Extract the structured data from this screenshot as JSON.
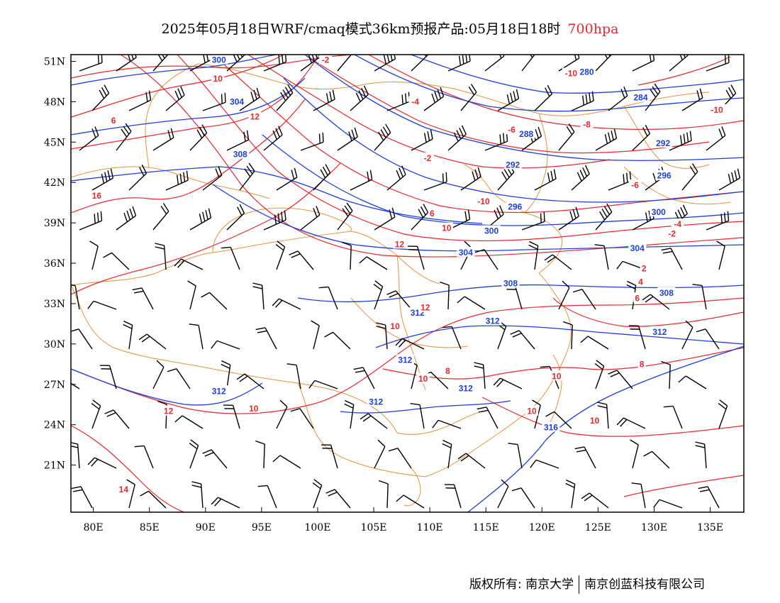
{
  "title": {
    "text": "2025年05月18日WRF/cmaq模式36km预报产品:05月18日18时",
    "level": "700hpa",
    "level_color": "#e8282c"
  },
  "footer": {
    "left": "版权所有: 南京大学",
    "right": "南京创蓝科技有限公司"
  },
  "map": {
    "lon_range": [
      78,
      138
    ],
    "lat_range": [
      17.5,
      51.5
    ],
    "x_ticks": [
      "80E",
      "85E",
      "90E",
      "95E",
      "100E",
      "105E",
      "110E",
      "115E",
      "120E",
      "125E",
      "130E",
      "135E"
    ],
    "x_tick_values": [
      80,
      85,
      90,
      95,
      100,
      105,
      110,
      115,
      120,
      125,
      130,
      135
    ],
    "y_ticks": [
      "51N",
      "48N",
      "45N",
      "42N",
      "39N",
      "36N",
      "33N",
      "30N",
      "27N",
      "24N",
      "21N"
    ],
    "y_tick_values": [
      51,
      48,
      45,
      42,
      39,
      36,
      33,
      30,
      27,
      24,
      21
    ],
    "colors": {
      "geopotential_height": "#1e3fdc",
      "temperature": "#e8282c",
      "boundaries": "#e8923a",
      "wind_barbs": "#000000"
    }
  },
  "height_labels": [
    {
      "text": "300",
      "lon": 91.2,
      "lat": 51.1
    },
    {
      "text": "304",
      "lon": 92.8,
      "lat": 48.0
    },
    {
      "text": "308",
      "lon": 93.1,
      "lat": 44.1
    },
    {
      "text": "280",
      "lon": 124.0,
      "lat": 50.2
    },
    {
      "text": "284",
      "lon": 128.8,
      "lat": 48.3
    },
    {
      "text": "288",
      "lon": 118.6,
      "lat": 45.6
    },
    {
      "text": "292",
      "lon": 117.4,
      "lat": 43.3
    },
    {
      "text": "292",
      "lon": 130.8,
      "lat": 44.9
    },
    {
      "text": "296",
      "lon": 130.9,
      "lat": 42.5
    },
    {
      "text": "296",
      "lon": 117.6,
      "lat": 40.2
    },
    {
      "text": "300",
      "lon": 115.5,
      "lat": 38.4
    },
    {
      "text": "300",
      "lon": 130.4,
      "lat": 39.8
    },
    {
      "text": "304",
      "lon": 113.2,
      "lat": 36.8
    },
    {
      "text": "304",
      "lon": 128.5,
      "lat": 37.1
    },
    {
      "text": "308",
      "lon": 117.2,
      "lat": 34.5
    },
    {
      "text": "308",
      "lon": 131.1,
      "lat": 33.8
    },
    {
      "text": "312",
      "lon": 108.9,
      "lat": 32.3
    },
    {
      "text": "312",
      "lon": 115.6,
      "lat": 31.7
    },
    {
      "text": "312",
      "lon": 130.5,
      "lat": 30.9
    },
    {
      "text": "312",
      "lon": 107.8,
      "lat": 28.8
    },
    {
      "text": "312",
      "lon": 91.2,
      "lat": 26.5
    },
    {
      "text": "312",
      "lon": 113.2,
      "lat": 26.7
    },
    {
      "text": "312",
      "lon": 105.2,
      "lat": 25.7
    },
    {
      "text": "316",
      "lon": 120.8,
      "lat": 23.8
    }
  ],
  "temperature_labels": [
    {
      "text": "-2",
      "lon": 100.7,
      "lat": 51.1
    },
    {
      "text": "10",
      "lon": 91.1,
      "lat": 49.7
    },
    {
      "text": "6",
      "lon": 81.8,
      "lat": 46.6
    },
    {
      "text": "12",
      "lon": 94.4,
      "lat": 46.9
    },
    {
      "text": "-4",
      "lon": 108.7,
      "lat": 48.0
    },
    {
      "text": "-6",
      "lon": 117.3,
      "lat": 45.9
    },
    {
      "text": "-10",
      "lon": 122.6,
      "lat": 50.1
    },
    {
      "text": "-8",
      "lon": 124.0,
      "lat": 46.3
    },
    {
      "text": "-10",
      "lon": 135.6,
      "lat": 47.4
    },
    {
      "text": "-2",
      "lon": 109.8,
      "lat": 43.8
    },
    {
      "text": "-6",
      "lon": 128.3,
      "lat": 41.8
    },
    {
      "text": "16",
      "lon": 80.3,
      "lat": 41.0
    },
    {
      "text": "-10",
      "lon": 114.8,
      "lat": 40.6
    },
    {
      "text": "6",
      "lon": 110.2,
      "lat": 39.7
    },
    {
      "text": "-4",
      "lon": 132.1,
      "lat": 38.9
    },
    {
      "text": "-2",
      "lon": 131.6,
      "lat": 38.2
    },
    {
      "text": "10",
      "lon": 111.5,
      "lat": 38.6
    },
    {
      "text": "12",
      "lon": 107.3,
      "lat": 37.4
    },
    {
      "text": "2",
      "lon": 129.1,
      "lat": 35.6
    },
    {
      "text": "4",
      "lon": 128.8,
      "lat": 34.6
    },
    {
      "text": "6",
      "lon": 128.5,
      "lat": 33.4
    },
    {
      "text": "12",
      "lon": 109.6,
      "lat": 32.7
    },
    {
      "text": "10",
      "lon": 106.9,
      "lat": 31.3
    },
    {
      "text": "8",
      "lon": 128.9,
      "lat": 28.5
    },
    {
      "text": "8",
      "lon": 111.6,
      "lat": 28.0
    },
    {
      "text": "10",
      "lon": 109.4,
      "lat": 27.4
    },
    {
      "text": "10",
      "lon": 121.3,
      "lat": 27.6
    },
    {
      "text": "12",
      "lon": 86.7,
      "lat": 25.0
    },
    {
      "text": "10",
      "lon": 94.3,
      "lat": 25.2
    },
    {
      "text": "10",
      "lon": 119.1,
      "lat": 25.0
    },
    {
      "text": "10",
      "lon": 124.7,
      "lat": 24.3
    },
    {
      "text": "14",
      "lon": 82.7,
      "lat": 19.2
    }
  ]
}
